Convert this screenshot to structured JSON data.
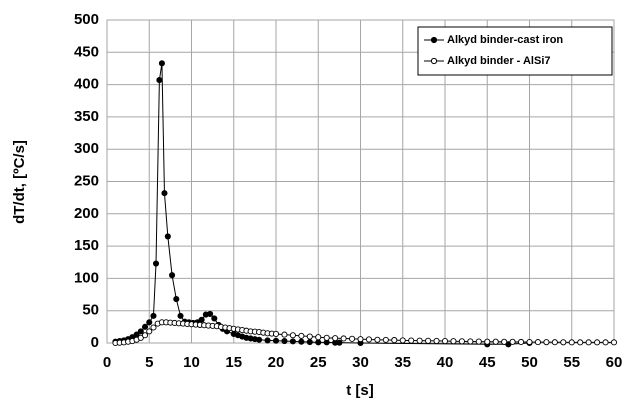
{
  "chart_data": {
    "type": "line",
    "x_label": "t [s]",
    "y_label": "dT/dt, [ºC/s]",
    "xlim": [
      0,
      60
    ],
    "xticks": [
      0,
      5,
      10,
      15,
      20,
      25,
      30,
      35,
      40,
      45,
      50,
      55,
      60
    ],
    "ylim": [
      0,
      500
    ],
    "yticks": [
      0,
      50,
      100,
      150,
      200,
      250,
      300,
      350,
      400,
      450,
      500
    ],
    "grid": true,
    "legend": "top-right",
    "series": [
      {
        "name": "Alkyd binder-cast iron",
        "color": "#000000",
        "marker": "filled",
        "x": [
          1,
          1.5,
          2,
          2.5,
          3,
          3.5,
          4,
          4.5,
          5,
          5.5,
          5.8,
          6.2,
          6.5,
          6.8,
          7.2,
          7.7,
          8.2,
          8.7,
          9.2,
          9.7,
          10.2,
          10.7,
          11.2,
          11.7,
          12.2,
          12.7,
          13.2,
          13.7,
          14.2,
          15,
          15.5,
          16,
          16.5,
          17,
          17.5,
          18,
          19,
          20,
          21,
          22,
          23,
          24,
          25,
          26,
          27,
          27.5,
          30,
          45,
          47.5,
          50
        ],
        "values": [
          2,
          3,
          4,
          6,
          9,
          13,
          18,
          25,
          32,
          42,
          123,
          407,
          433,
          232,
          165,
          105,
          68,
          42,
          33,
          32,
          31,
          32,
          36,
          44,
          45,
          38,
          28,
          22,
          18,
          14,
          12,
          10,
          8,
          7,
          6,
          5,
          4,
          3.5,
          3,
          2.5,
          2,
          1.5,
          1,
          1,
          0.5,
          0.5,
          0,
          -2,
          -2,
          0
        ]
      },
      {
        "name": "Alkyd binder - AlSi7",
        "color": "#000000",
        "marker": "open",
        "x": [
          1,
          1.5,
          2,
          2.5,
          3,
          3.5,
          4,
          4.5,
          5,
          5.5,
          6,
          6.5,
          7,
          7.5,
          8,
          8.5,
          9,
          9.5,
          10,
          10.5,
          11,
          11.5,
          12,
          12.5,
          13,
          13.5,
          14,
          14.5,
          15,
          15.5,
          16,
          16.5,
          17,
          17.5,
          18,
          18.5,
          19,
          19.5,
          20,
          21,
          22,
          23,
          24,
          25,
          26,
          27,
          28,
          29,
          30,
          31,
          32,
          33,
          34,
          35,
          36,
          37,
          38,
          39,
          40,
          41,
          42,
          43,
          44,
          45,
          46,
          47,
          48,
          49,
          50,
          51,
          52,
          53,
          54,
          55,
          56,
          57,
          58,
          59,
          60
        ],
        "values": [
          0,
          0.5,
          1,
          2,
          3,
          5,
          8,
          12,
          18,
          24,
          30,
          32,
          32,
          31.5,
          31,
          30.5,
          30,
          29.5,
          29,
          28.5,
          28,
          27.5,
          27,
          26.5,
          26,
          25,
          24,
          23,
          22,
          21,
          20,
          19,
          18,
          17.5,
          17,
          16,
          15,
          14.5,
          14,
          13,
          12,
          11,
          10,
          9,
          8,
          7.5,
          7,
          6.5,
          6,
          5.5,
          5,
          4.8,
          4.5,
          4,
          3.8,
          3.6,
          3.4,
          3.2,
          3,
          2.8,
          2.6,
          2.4,
          2.2,
          2,
          2,
          1.8,
          1.8,
          1.6,
          1.5,
          1.4,
          1.3,
          1.2,
          1.1,
          1,
          1,
          1,
          1,
          1,
          1
        ]
      }
    ]
  }
}
